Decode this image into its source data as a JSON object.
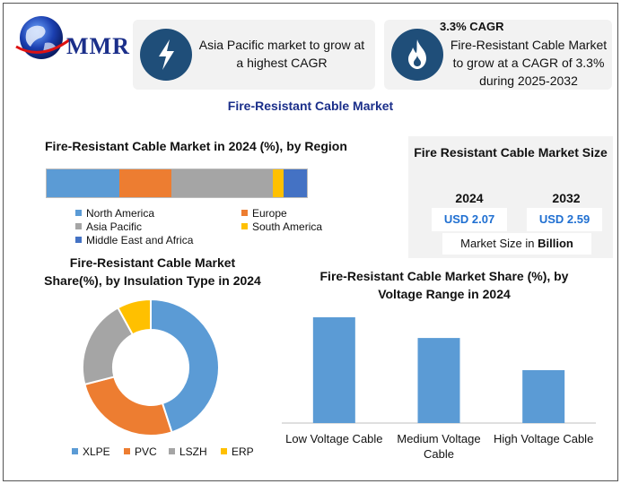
{
  "header": {
    "logo_text": "MMR"
  },
  "callouts": [
    {
      "icon": "lightning-icon",
      "text": "Asia Pacific market to grow at a highest CAGR"
    },
    {
      "icon": "fire-icon",
      "headline": "3.3% CAGR",
      "text": "Fire-Resistant Cable Market to grow at a CAGR of 3.3% during 2025-2032"
    }
  ],
  "main_title": "Fire-Resistant Cable Market",
  "colors": {
    "blue": "#5b9bd5",
    "orange": "#ed7d31",
    "gray": "#a5a5a5",
    "yellow": "#ffc000",
    "dark_blue": "#4472c4",
    "navy": "#1f4e79",
    "value_blue": "#1f6fd1"
  },
  "market_size": {
    "title": "Fire Resistant Cable Market Size",
    "years": [
      {
        "year": "2024",
        "value": "USD 2.07"
      },
      {
        "year": "2032",
        "value": "USD 2.59"
      }
    ],
    "footer_prefix": "Market Size in ",
    "footer_unit": "Billion"
  },
  "chart_data": [
    {
      "type": "bar",
      "stacked": true,
      "orientation": "horizontal",
      "title": "Fire-Resistant Cable Market in 2024 (%), by Region",
      "series": [
        {
          "name": "North America",
          "value": 28,
          "color": "#5b9bd5"
        },
        {
          "name": "Europe",
          "value": 20,
          "color": "#ed7d31"
        },
        {
          "name": "Asia Pacific",
          "value": 39,
          "color": "#a5a5a5"
        },
        {
          "name": "South America",
          "value": 4,
          "color": "#ffc000"
        },
        {
          "name": "Middle East and Africa",
          "value": 9,
          "color": "#4472c4"
        }
      ],
      "legend": [
        "North America",
        "Europe",
        "Asia Pacific",
        "South America",
        "Middle East and Africa"
      ]
    },
    {
      "type": "pie",
      "donut": true,
      "title": "Fire-Resistant Cable  Market Share(%), by Insulation Type in 2024",
      "title_lines": [
        "Fire-Resistant Cable  Market",
        "Share(%), by Insulation Type in 2024"
      ],
      "slices": [
        {
          "name": "XLPE",
          "value": 45,
          "color": "#5b9bd5"
        },
        {
          "name": "PVC",
          "value": 26,
          "color": "#ed7d31"
        },
        {
          "name": "LSZH",
          "value": 21,
          "color": "#a5a5a5"
        },
        {
          "name": "ERP",
          "value": 8,
          "color": "#ffc000"
        }
      ],
      "legend_position": "bottom"
    },
    {
      "type": "bar",
      "title": "Fire-Resistant Cable Market Share (%), by Voltage Range in 2024",
      "title_lines": [
        "Fire-Resistant Cable Market Share (%), by",
        "Voltage Range in 2024"
      ],
      "categories": [
        "Low Voltage Cable",
        "Medium Voltage Cable",
        "High Voltage Cable"
      ],
      "category_lines": [
        [
          "Low Voltage Cable"
        ],
        [
          "Medium Voltage",
          "Cable"
        ],
        [
          "High Voltage Cable"
        ]
      ],
      "values": [
        46,
        37,
        23
      ],
      "ylim": [
        0,
        46
      ],
      "color": "#5b9bd5"
    }
  ]
}
